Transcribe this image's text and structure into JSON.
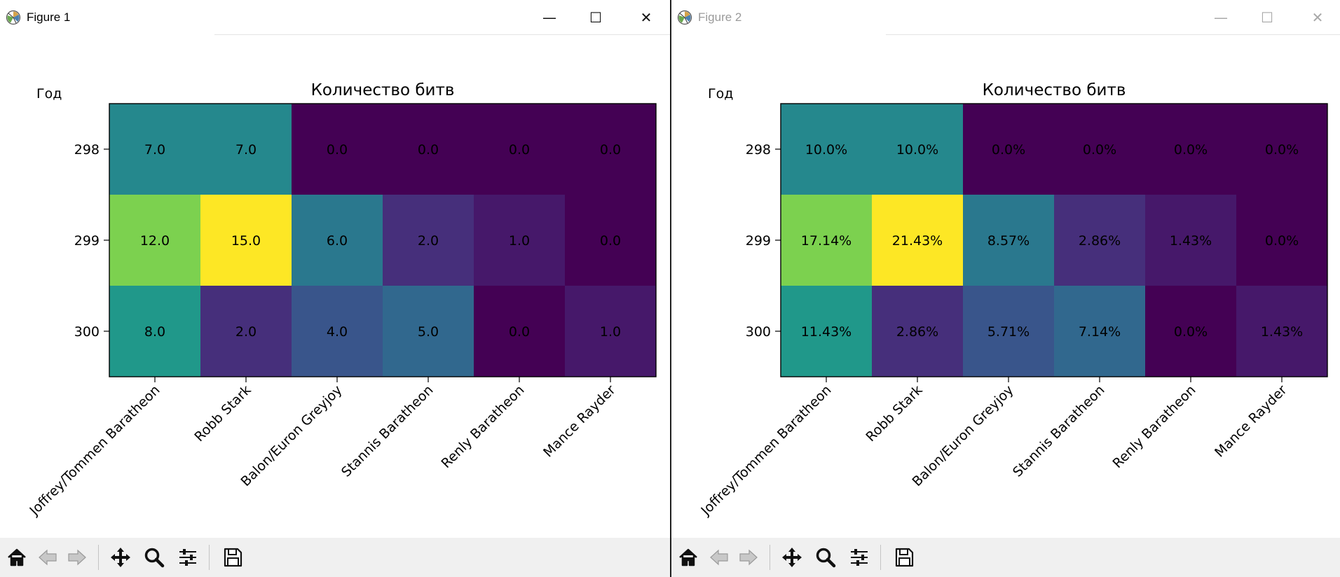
{
  "colors": {
    "viridis": [
      "#440154",
      "#482878",
      "#3e4989",
      "#31688e",
      "#26828e",
      "#1f9e89",
      "#35b779",
      "#6ece58",
      "#b5de2b",
      "#fde725"
    ]
  },
  "windows": [
    {
      "title": "Figure 1",
      "active": true,
      "icon": "matplotlib-logo-icon",
      "controls": {
        "minimize": "—",
        "maximize": "☐",
        "close": "✕"
      },
      "chart_data": {
        "type": "heatmap",
        "title": "Количество битв",
        "ylabel": "Год",
        "x": [
          "Joffrey/Tommen Baratheon",
          "Robb Stark",
          "Balon/Euron Greyjoy",
          "Stannis Baratheon",
          "Renly Baratheon",
          "Mance Rayder"
        ],
        "y": [
          "298",
          "299",
          "300"
        ],
        "values": [
          [
            7,
            7,
            0,
            0,
            0,
            0
          ],
          [
            12,
            15,
            6,
            2,
            1,
            0
          ],
          [
            8,
            2,
            4,
            5,
            0,
            1
          ]
        ],
        "labels": [
          [
            "7.0",
            "7.0",
            "0.0",
            "0.0",
            "0.0",
            "0.0"
          ],
          [
            "12.0",
            "15.0",
            "6.0",
            "2.0",
            "1.0",
            "0.0"
          ],
          [
            "8.0",
            "2.0",
            "4.0",
            "5.0",
            "0.0",
            "1.0"
          ]
        ],
        "colormap": "viridis",
        "vmin": 0,
        "vmax": 15
      },
      "toolbar": [
        "home-icon",
        "back-arrow-icon",
        "forward-arrow-icon",
        "pan-move-icon",
        "zoom-magnifier-icon",
        "configure-subplots-icon",
        "save-floppy-icon"
      ]
    },
    {
      "title": "Figure 2",
      "active": false,
      "icon": "matplotlib-logo-icon",
      "controls": {
        "minimize": "—",
        "maximize": "☐",
        "close": "✕"
      },
      "chart_data": {
        "type": "heatmap",
        "title": "Количество битв",
        "ylabel": "Год",
        "x": [
          "Joffrey/Tommen Baratheon",
          "Robb Stark",
          "Balon/Euron Greyjoy",
          "Stannis Baratheon",
          "Renly Baratheon",
          "Mance Rayder"
        ],
        "y": [
          "298",
          "299",
          "300"
        ],
        "values": [
          [
            10.0,
            10.0,
            0.0,
            0.0,
            0.0,
            0.0
          ],
          [
            17.14,
            21.43,
            8.57,
            2.86,
            1.43,
            0.0
          ],
          [
            11.43,
            2.86,
            5.71,
            7.14,
            0.0,
            1.43
          ]
        ],
        "labels": [
          [
            "10.0%",
            "10.0%",
            "0.0%",
            "0.0%",
            "0.0%",
            "0.0%"
          ],
          [
            "17.14%",
            "21.43%",
            "8.57%",
            "2.86%",
            "1.43%",
            "0.0%"
          ],
          [
            "11.43%",
            "2.86%",
            "5.71%",
            "7.14%",
            "0.0%",
            "1.43%"
          ]
        ],
        "colormap": "viridis",
        "vmin": 0,
        "vmax": 21.43
      },
      "toolbar": [
        "home-icon",
        "back-arrow-icon",
        "forward-arrow-icon",
        "pan-move-icon",
        "zoom-magnifier-icon",
        "configure-subplots-icon",
        "save-floppy-icon"
      ]
    }
  ]
}
